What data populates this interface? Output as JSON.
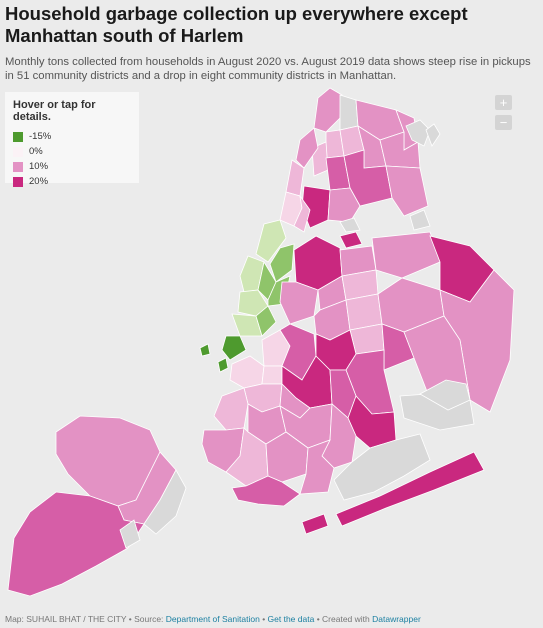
{
  "header": {
    "title": "Household garbage collection up everywhere except Manhattan south of Harlem",
    "subtitle": "Monthly tons collected from households in August 2020 vs. August 2019 data shows steep rise in pickups in 51 community districts and a drop in eight community districts in Manhattan."
  },
  "legend": {
    "title": "Hover or tap for details.",
    "items": [
      {
        "label": "-15%",
        "color": "#4e9a2e"
      },
      {
        "label": "0%",
        "color": "#fbf2f6"
      },
      {
        "label": "10%",
        "color": "#e392c4"
      },
      {
        "label": "20%",
        "color": "#c9287f"
      }
    ]
  },
  "zoom": {
    "in_label": "+",
    "out_label": "−"
  },
  "colors": {
    "background": "#ebebeb",
    "no_data": "#d9d9d9",
    "deep_green": "#4e9a2e",
    "mid_green": "#8fc46a",
    "light_green": "#cfe6b4",
    "pale_pink": "#f6d6e7",
    "light_pink": "#eeb7d8",
    "mid_pink": "#e392c4",
    "strong_pink": "#d65ea7",
    "magenta": "#c9287f"
  },
  "footer": {
    "credit": "Map: SUHAIL BHAT / THE CITY",
    "source_prefix": "• Source: ",
    "source_link": "Department of Sanitation",
    "sep": " • ",
    "data_link": "Get the data",
    "created_prefix": " • Created with ",
    "tool_link": "Datawrapper"
  }
}
